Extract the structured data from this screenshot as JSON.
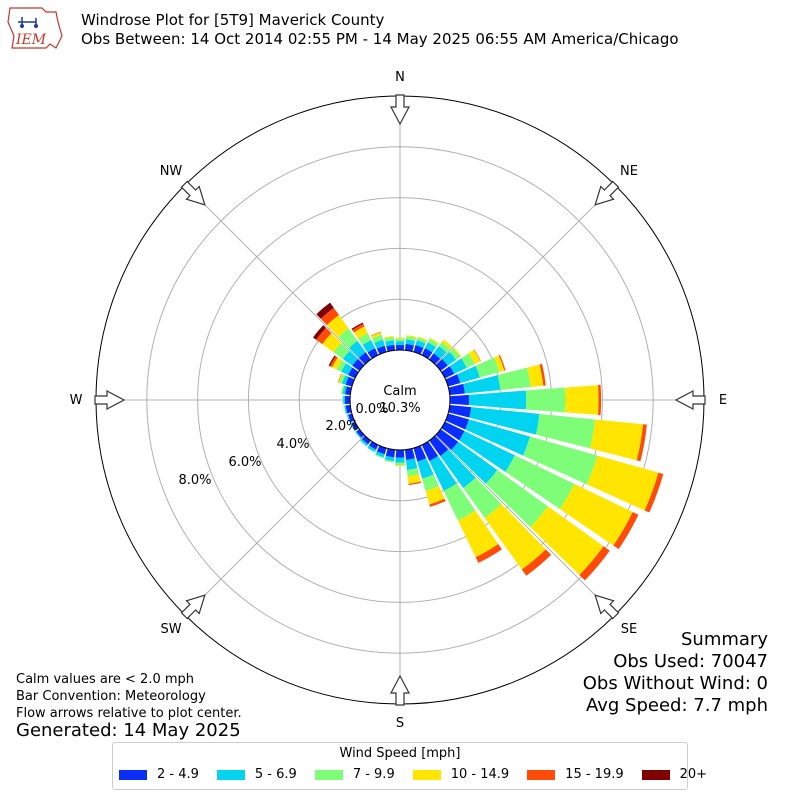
{
  "header": {
    "logo_text": "IEM",
    "title_line1": "Windrose Plot for [5T9] Maverick County",
    "title_line2": "Obs Between: 14 Oct 2014 02:55 PM - 14 May 2025 06:55 AM America/Chicago"
  },
  "notes": {
    "calm_note": "Calm values are < 2.0 mph",
    "bar_convention": "Bar Convention: Meteorology",
    "flow_note": "Flow arrows relative to plot center.",
    "generated": "Generated: 14 May 2025"
  },
  "summary": {
    "heading": "Summary",
    "obs_used": "Obs Used: 70047",
    "obs_without_wind": "Obs Without Wind: 0",
    "avg_speed": "Avg Speed: 7.7 mph"
  },
  "legend": {
    "title": "Wind Speed [mph]",
    "items": [
      {
        "label": "2 - 4.9",
        "color": "#0a2dfc"
      },
      {
        "label": "5 - 6.9",
        "color": "#00d4f0"
      },
      {
        "label": "7 - 9.9",
        "color": "#7dfd78"
      },
      {
        "label": "10 - 14.9",
        "color": "#ffe500"
      },
      {
        "label": "15 - 19.9",
        "color": "#ff4b0a"
      },
      {
        "label": "20+",
        "color": "#7f0000"
      }
    ]
  },
  "chart_data": {
    "type": "windrose",
    "calm_label": "Calm",
    "calm_percent": "10.3%",
    "radial_ticks": [
      "0.0%",
      "2.0%",
      "4.0%",
      "6.0%",
      "8.0%"
    ],
    "radial_max": 10,
    "directions": [
      "N",
      "NE",
      "E",
      "SE",
      "S",
      "SW",
      "W",
      "NW"
    ],
    "bins": [
      "2 - 4.9",
      "5 - 6.9",
      "7 - 9.9",
      "10 - 14.9",
      "15 - 19.9",
      "20+"
    ],
    "sectors": [
      {
        "deg": 0,
        "values": [
          0.2,
          0.15,
          0.1,
          0.04,
          0.0,
          0.0
        ]
      },
      {
        "deg": 10,
        "values": [
          0.25,
          0.18,
          0.12,
          0.05,
          0.0,
          0.0
        ]
      },
      {
        "deg": 20,
        "values": [
          0.28,
          0.2,
          0.1,
          0.05,
          0.0,
          0.0
        ]
      },
      {
        "deg": 30,
        "values": [
          0.3,
          0.25,
          0.15,
          0.05,
          0.0,
          0.0
        ]
      },
      {
        "deg": 40,
        "values": [
          0.3,
          0.35,
          0.2,
          0.12,
          0.0,
          0.0
        ]
      },
      {
        "deg": 50,
        "values": [
          0.35,
          0.4,
          0.2,
          0.05,
          0.0,
          0.0
        ]
      },
      {
        "deg": 60,
        "values": [
          0.4,
          0.55,
          0.35,
          0.25,
          0.02,
          0.0
        ]
      },
      {
        "deg": 70,
        "values": [
          0.5,
          0.8,
          0.8,
          0.2,
          0.05,
          0.0
        ]
      },
      {
        "deg": 80,
        "values": [
          0.6,
          1.4,
          1.2,
          0.5,
          0.1,
          0.0
        ]
      },
      {
        "deg": 90,
        "values": [
          0.75,
          2.25,
          1.55,
          1.3,
          0.1,
          0.0
        ]
      },
      {
        "deg": 100,
        "values": [
          0.85,
          2.7,
          2.2,
          1.9,
          0.15,
          0.0
        ]
      },
      {
        "deg": 110,
        "values": [
          0.85,
          2.5,
          2.75,
          2.5,
          0.2,
          0.0
        ]
      },
      {
        "deg": 120,
        "values": [
          0.85,
          2.2,
          2.6,
          2.55,
          0.25,
          0.0
        ]
      },
      {
        "deg": 130,
        "values": [
          0.85,
          1.9,
          2.45,
          2.7,
          0.3,
          0.0
        ]
      },
      {
        "deg": 140,
        "values": [
          0.75,
          1.55,
          1.45,
          2.5,
          0.3,
          0.0
        ]
      },
      {
        "deg": 150,
        "values": [
          0.7,
          1.3,
          1.3,
          1.6,
          0.25,
          0.0
        ]
      },
      {
        "deg": 160,
        "values": [
          0.55,
          0.7,
          0.5,
          0.55,
          0.1,
          0.0
        ]
      },
      {
        "deg": 170,
        "values": [
          0.4,
          0.4,
          0.25,
          0.3,
          0.05,
          0.0
        ]
      },
      {
        "deg": 180,
        "values": [
          0.3,
          0.2,
          0.1,
          0.03,
          0.0,
          0.0
        ]
      },
      {
        "deg": 190,
        "values": [
          0.3,
          0.15,
          0.05,
          0.0,
          0.0,
          0.0
        ]
      },
      {
        "deg": 200,
        "values": [
          0.25,
          0.12,
          0.05,
          0.0,
          0.0,
          0.0
        ]
      },
      {
        "deg": 210,
        "values": [
          0.2,
          0.1,
          0.03,
          0.0,
          0.0,
          0.0
        ]
      },
      {
        "deg": 220,
        "values": [
          0.18,
          0.08,
          0.03,
          0.0,
          0.0,
          0.0
        ]
      },
      {
        "deg": 230,
        "values": [
          0.15,
          0.05,
          0.0,
          0.0,
          0.0,
          0.0
        ]
      },
      {
        "deg": 240,
        "values": [
          0.15,
          0.05,
          0.0,
          0.0,
          0.0,
          0.0
        ]
      },
      {
        "deg": 250,
        "values": [
          0.15,
          0.05,
          0.0,
          0.0,
          0.0,
          0.0
        ]
      },
      {
        "deg": 260,
        "values": [
          0.18,
          0.05,
          0.02,
          0.0,
          0.0,
          0.0
        ]
      },
      {
        "deg": 270,
        "values": [
          0.2,
          0.07,
          0.03,
          0.0,
          0.0,
          0.0
        ]
      },
      {
        "deg": 280,
        "values": [
          0.2,
          0.1,
          0.05,
          0.02,
          0.0,
          0.0
        ]
      },
      {
        "deg": 290,
        "values": [
          0.25,
          0.15,
          0.1,
          0.05,
          0.02,
          0.0
        ]
      },
      {
        "deg": 300,
        "values": [
          0.3,
          0.3,
          0.2,
          0.2,
          0.1,
          0.05
        ]
      },
      {
        "deg": 310,
        "values": [
          0.35,
          0.45,
          0.45,
          0.55,
          0.3,
          0.15
        ]
      },
      {
        "deg": 320,
        "values": [
          0.35,
          0.55,
          0.6,
          0.65,
          0.35,
          0.25
        ]
      },
      {
        "deg": 330,
        "values": [
          0.3,
          0.35,
          0.3,
          0.3,
          0.12,
          0.05
        ]
      },
      {
        "deg": 340,
        "values": [
          0.25,
          0.25,
          0.2,
          0.1,
          0.02,
          0.0
        ]
      },
      {
        "deg": 350,
        "values": [
          0.22,
          0.18,
          0.12,
          0.05,
          0.0,
          0.0
        ]
      }
    ]
  }
}
